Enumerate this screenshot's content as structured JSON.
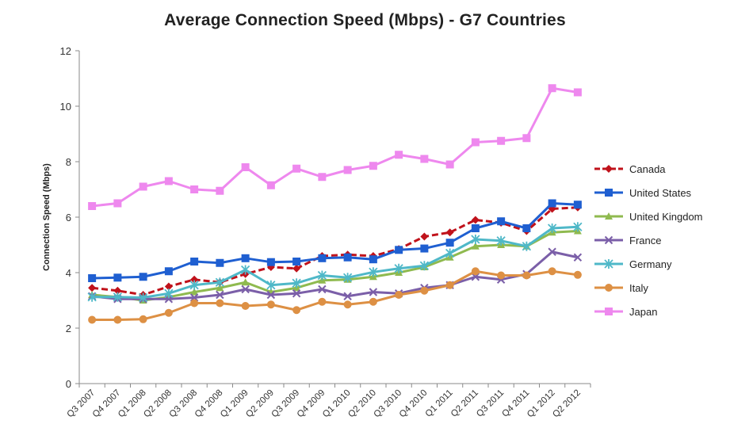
{
  "chart_data": {
    "type": "line",
    "title": "Average Connection  Speed (Mbps)  - G7 Countries",
    "xlabel": "",
    "ylabel": "Connection Speed (Mbps)",
    "ylim": [
      0,
      12
    ],
    "yticks": [
      0,
      2,
      4,
      6,
      8,
      10,
      12
    ],
    "grid": false,
    "legend_position": "right",
    "categories": [
      "Q3 2007",
      "Q4 2007",
      "Q1 2008",
      "Q2 2008",
      "Q3 2008",
      "Q4 2008",
      "Q1 2009",
      "Q2 2009",
      "Q3 2009",
      "Q4 2009",
      "Q1 2010",
      "Q2 2010",
      "Q3 2010",
      "Q4 2010",
      "Q1 2011",
      "Q2 2011",
      "Q3 2011",
      "Q4 2011",
      "Q1 2012",
      "Q2 2012"
    ],
    "series": [
      {
        "name": "Canada",
        "color": "#c0121b",
        "marker": "diamond",
        "dash": true,
        "values": [
          3.45,
          3.35,
          3.2,
          3.5,
          3.75,
          3.65,
          3.95,
          4.2,
          4.15,
          4.6,
          4.65,
          4.6,
          4.85,
          5.3,
          5.45,
          5.9,
          5.8,
          5.5,
          6.3,
          6.35
        ]
      },
      {
        "name": "United States",
        "color": "#1f5fd1",
        "marker": "square",
        "dash": false,
        "values": [
          3.8,
          3.82,
          3.85,
          4.05,
          4.4,
          4.35,
          4.52,
          4.38,
          4.4,
          4.52,
          4.55,
          4.48,
          4.82,
          4.87,
          5.08,
          5.6,
          5.85,
          5.6,
          6.5,
          6.45
        ]
      },
      {
        "name": "United Kingdom",
        "color": "#8fba4f",
        "marker": "triangle",
        "dash": false,
        "values": [
          3.2,
          3.12,
          3.0,
          3.12,
          3.3,
          3.45,
          3.65,
          3.3,
          3.45,
          3.72,
          3.75,
          3.85,
          4.0,
          4.2,
          4.55,
          4.95,
          5.0,
          4.95,
          5.45,
          5.5
        ]
      },
      {
        "name": "France",
        "color": "#7b5fa8",
        "marker": "x",
        "dash": false,
        "values": [
          3.15,
          3.05,
          3.05,
          3.05,
          3.1,
          3.2,
          3.4,
          3.2,
          3.25,
          3.4,
          3.15,
          3.3,
          3.25,
          3.45,
          3.55,
          3.85,
          3.75,
          3.95,
          4.75,
          4.55
        ]
      },
      {
        "name": "Germany",
        "color": "#4fb8c8",
        "marker": "star",
        "dash": false,
        "values": [
          3.12,
          3.12,
          3.1,
          3.25,
          3.55,
          3.65,
          4.1,
          3.55,
          3.62,
          3.9,
          3.82,
          4.02,
          4.15,
          4.25,
          4.7,
          5.2,
          5.15,
          4.95,
          5.6,
          5.65
        ]
      },
      {
        "name": "Italy",
        "color": "#dd9044",
        "marker": "circle",
        "dash": false,
        "values": [
          2.3,
          2.3,
          2.32,
          2.55,
          2.9,
          2.9,
          2.8,
          2.85,
          2.65,
          2.95,
          2.85,
          2.95,
          3.2,
          3.35,
          3.55,
          4.05,
          3.9,
          3.9,
          4.05,
          3.92
        ]
      },
      {
        "name": "Japan",
        "color": "#ee88ee",
        "marker": "square",
        "dash": false,
        "values": [
          6.4,
          6.5,
          7.1,
          7.3,
          7.0,
          6.95,
          7.8,
          7.15,
          7.75,
          7.45,
          7.7,
          7.85,
          8.25,
          8.1,
          7.9,
          8.7,
          8.75,
          8.85,
          10.65,
          10.5
        ]
      }
    ]
  }
}
